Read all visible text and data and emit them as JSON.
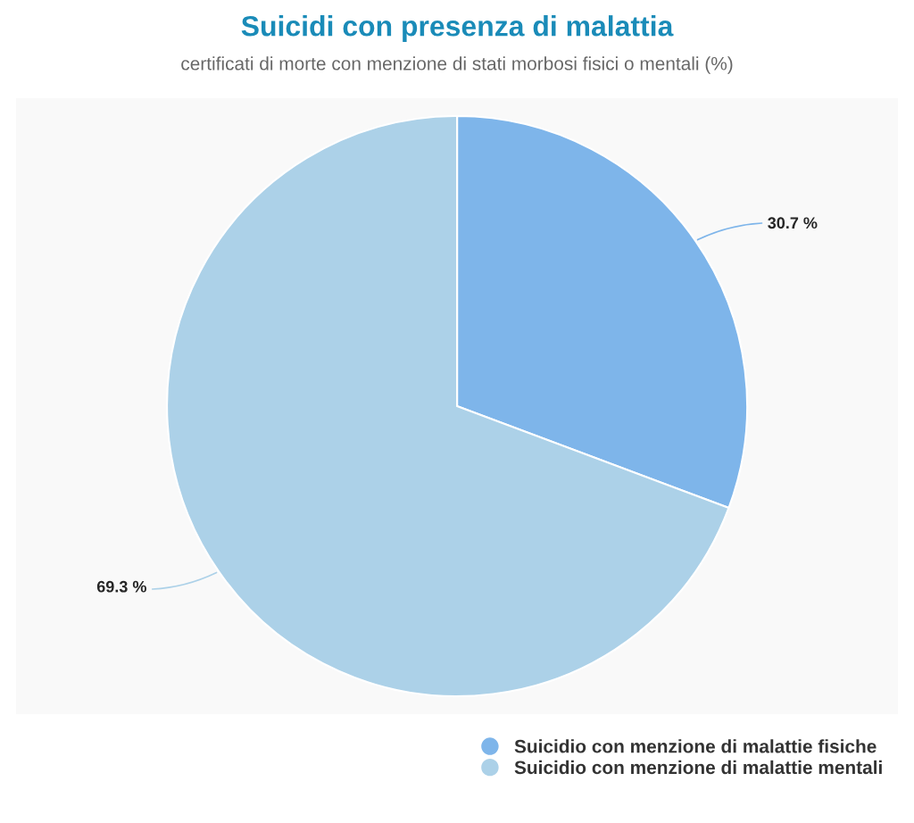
{
  "chart_data": {
    "type": "pie",
    "title": "Suicidi con presenza di malattia",
    "subtitle": "certificati di morte con menzione di stati morbosi fisici o mentali (%)",
    "categories": [
      "Suicidio con menzione di malattie fisiche",
      "Suicidio con menzione di malattie mentali"
    ],
    "values": [
      30.7,
      69.3
    ],
    "colors": [
      "#7eb5ea",
      "#acd1e8"
    ],
    "value_labels": [
      "30.7 %",
      "69.3 %"
    ],
    "legend": "bottom right"
  }
}
